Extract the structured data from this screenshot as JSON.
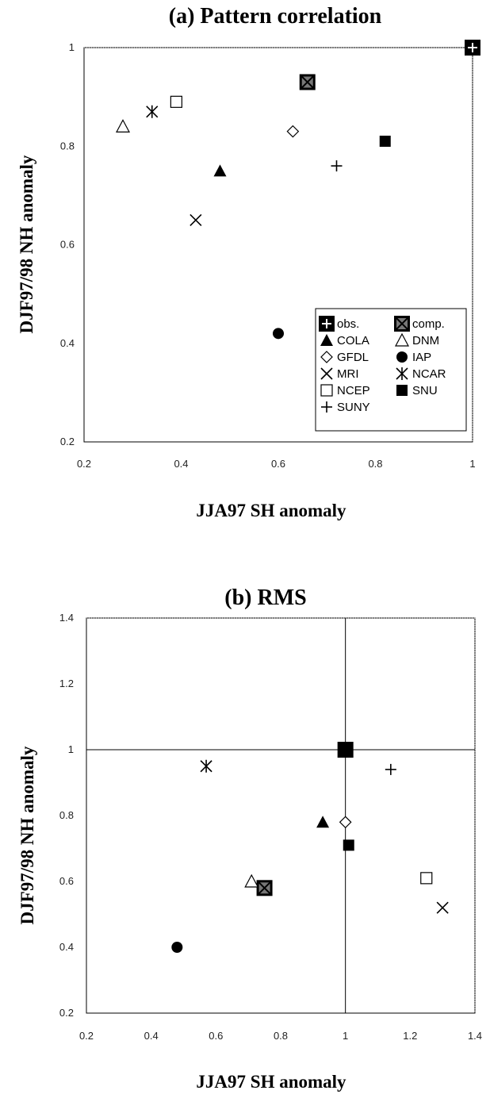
{
  "chart_data": [
    {
      "type": "scatter",
      "title": "(a) Pattern correlation",
      "xlabel": "JJA97 SH anomaly",
      "ylabel": "DJF97/98 NH anomaly",
      "xlim": [
        0.2,
        1
      ],
      "ylim": [
        0.2,
        1
      ],
      "xticks": [
        "0.2",
        "0.4",
        "0.6",
        "0.8",
        "1"
      ],
      "yticks": [
        "0.2",
        "0.4",
        "0.6",
        "0.8",
        "1"
      ],
      "grid": false,
      "legend_position": "bottom-right",
      "points": [
        {
          "label": "obs.",
          "marker": "plus-square",
          "x": 1.0,
          "y": 1.0
        },
        {
          "label": "comp.",
          "marker": "x-square",
          "x": 0.66,
          "y": 0.93
        },
        {
          "label": "COLA",
          "marker": "triangle-filled",
          "x": 0.48,
          "y": 0.75
        },
        {
          "label": "DNM",
          "marker": "triangle-open",
          "x": 0.28,
          "y": 0.84
        },
        {
          "label": "GFDL",
          "marker": "diamond-open",
          "x": 0.63,
          "y": 0.83
        },
        {
          "label": "IAP",
          "marker": "circle-filled",
          "x": 0.6,
          "y": 0.42
        },
        {
          "label": "MRI",
          "marker": "x",
          "x": 0.43,
          "y": 0.65
        },
        {
          "label": "NCAR",
          "marker": "asterisk",
          "x": 0.34,
          "y": 0.87
        },
        {
          "label": "NCEP",
          "marker": "square-open",
          "x": 0.39,
          "y": 0.89
        },
        {
          "label": "SNU",
          "marker": "square-filled",
          "x": 0.82,
          "y": 0.81
        },
        {
          "label": "SUNY",
          "marker": "plus",
          "x": 0.72,
          "y": 0.76
        }
      ]
    },
    {
      "type": "scatter",
      "title": "(b) RMS",
      "xlabel": "JJA97 SH anomaly",
      "ylabel": "DJF97/98 NH anomaly",
      "xlim": [
        0.2,
        1.4
      ],
      "ylim": [
        0.2,
        1.4
      ],
      "xticks": [
        "0.2",
        "0.4",
        "0.6",
        "0.8",
        "1",
        "1.2",
        "1.4"
      ],
      "yticks": [
        "0.2",
        "0.4",
        "0.6",
        "0.8",
        "1",
        "1.2",
        "1.4"
      ],
      "grid": false,
      "reference_lines": {
        "x": 1.0,
        "y": 1.0
      },
      "points": [
        {
          "label": "obs.",
          "marker": "square-filled-large",
          "x": 1.0,
          "y": 1.0
        },
        {
          "label": "comp.",
          "marker": "x-square",
          "x": 0.75,
          "y": 0.58
        },
        {
          "label": "COLA",
          "marker": "triangle-filled",
          "x": 0.93,
          "y": 0.78
        },
        {
          "label": "DNM",
          "marker": "triangle-open",
          "x": 0.71,
          "y": 0.6
        },
        {
          "label": "GFDL",
          "marker": "diamond-open",
          "x": 1.0,
          "y": 0.78
        },
        {
          "label": "IAP",
          "marker": "circle-filled",
          "x": 0.48,
          "y": 0.4
        },
        {
          "label": "MRI",
          "marker": "x",
          "x": 1.3,
          "y": 0.52
        },
        {
          "label": "NCAR",
          "marker": "asterisk",
          "x": 0.57,
          "y": 0.95
        },
        {
          "label": "NCEP",
          "marker": "square-open",
          "x": 1.25,
          "y": 0.61
        },
        {
          "label": "SNU",
          "marker": "square-filled",
          "x": 1.01,
          "y": 0.71
        },
        {
          "label": "SUNY",
          "marker": "plus",
          "x": 1.14,
          "y": 0.94
        }
      ]
    }
  ]
}
